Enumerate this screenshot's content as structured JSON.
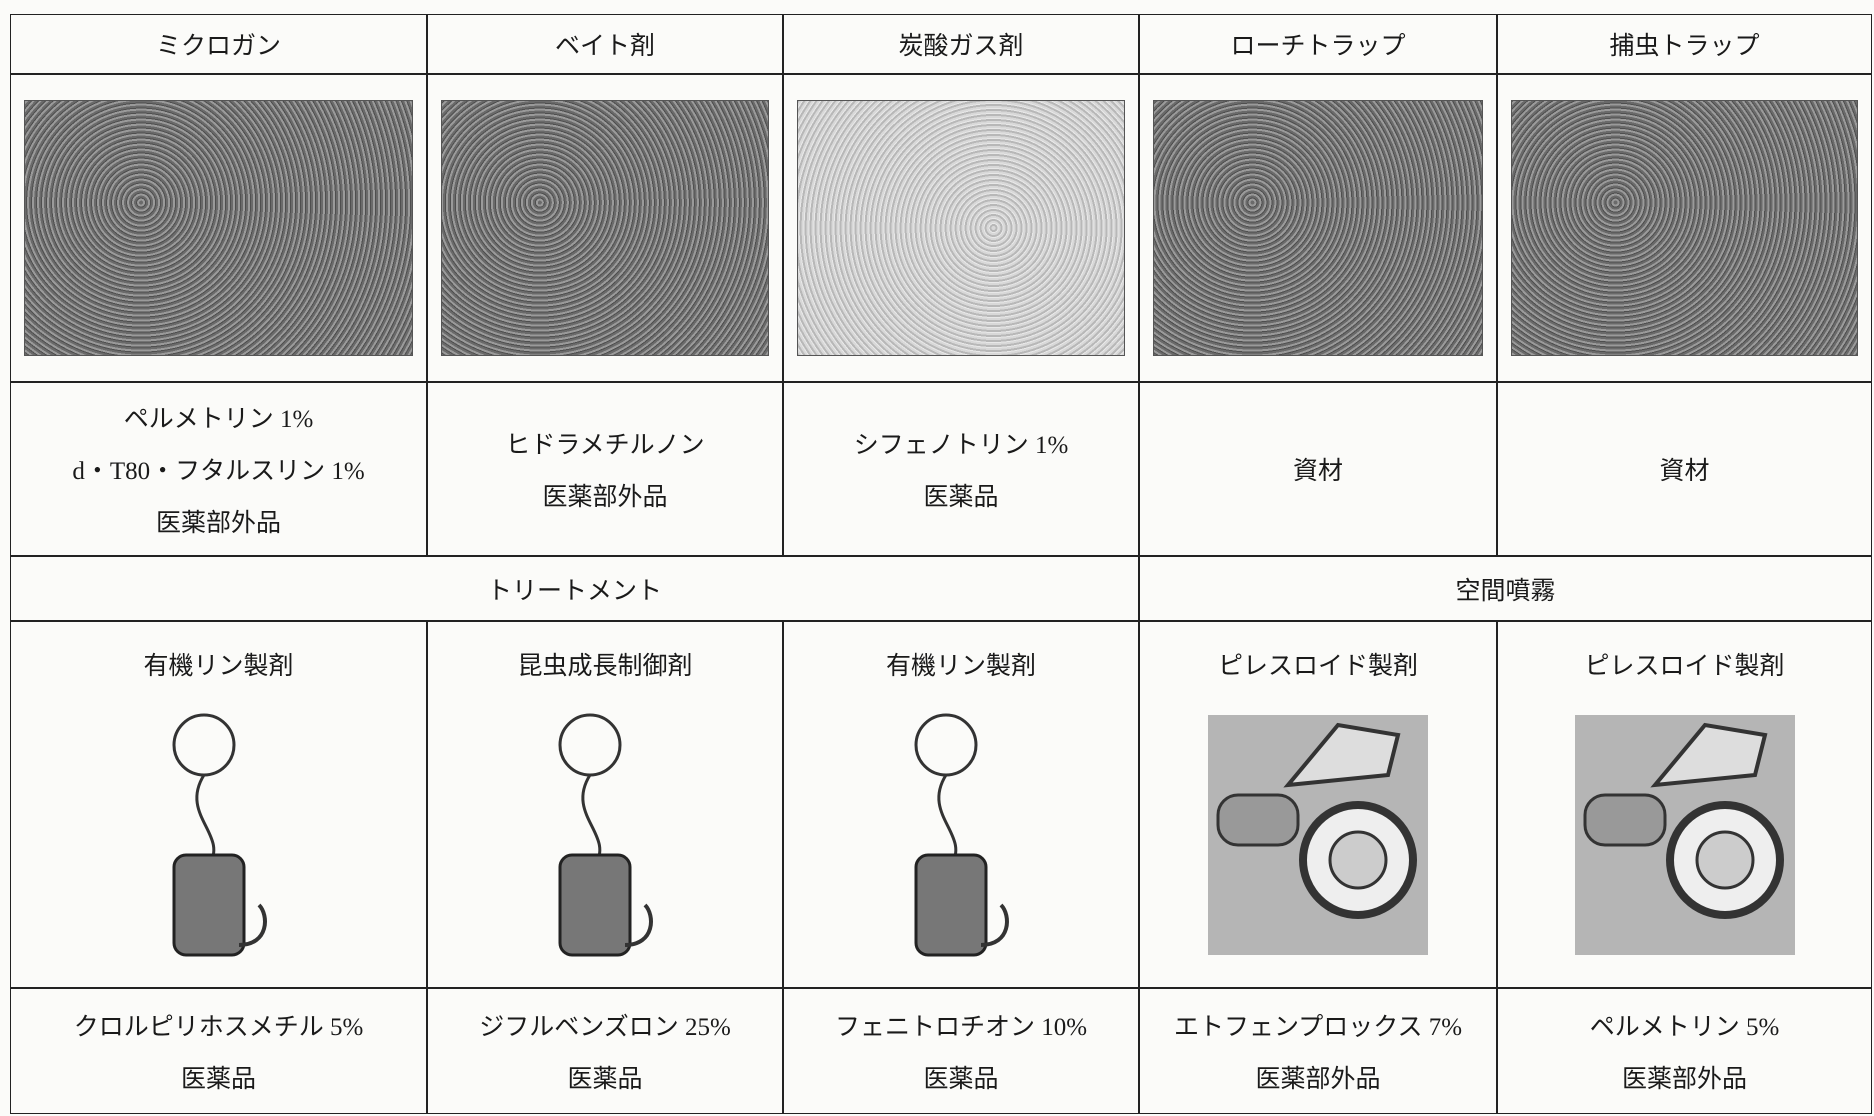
{
  "table": {
    "top_products": [
      {
        "header": "ミクロガン",
        "lines": [
          "ペルメトリン 1%",
          "d・T80・フタルスリン 1%",
          "医薬部外品"
        ]
      },
      {
        "header": "ベイト剤",
        "lines": [
          "ヒドラメチルノン",
          "医薬部外品"
        ]
      },
      {
        "header": "炭酸ガス剤",
        "lines": [
          "シフェノトリン 1%",
          "医薬品"
        ]
      },
      {
        "header": "ローチトラップ",
        "lines": [
          "資材"
        ]
      },
      {
        "header": "捕虫トラップ",
        "lines": [
          "資材"
        ]
      }
    ],
    "groups": [
      {
        "label": "トリートメント",
        "products": [
          {
            "type": "有機リン製剤",
            "ingredient": "クロルピリホスメチル 5%",
            "class": "医薬品"
          },
          {
            "type": "昆虫成長制御剤",
            "ingredient": "ジフルベンズロン 25%",
            "class": "医薬品"
          },
          {
            "type": "有機リン製剤",
            "ingredient": "フェニトロチオン 10%",
            "class": "医薬品"
          }
        ]
      },
      {
        "label": "空間噴霧",
        "products": [
          {
            "type": "ピレスロイド製剤",
            "ingredient": "エトフェンプロックス 7%",
            "class": "医薬部外品"
          },
          {
            "type": "ピレスロイド製剤",
            "ingredient": "ペルメトリン 5%",
            "class": "医薬部外品"
          }
        ]
      }
    ]
  }
}
